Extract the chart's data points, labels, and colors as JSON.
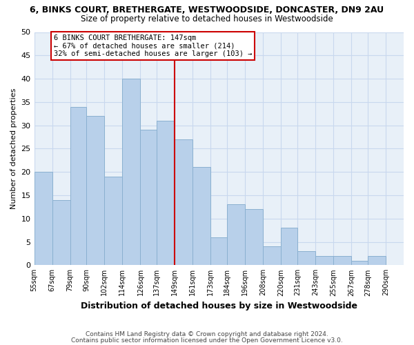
{
  "title": "6, BINKS COURT, BRETHERGATE, WESTWOODSIDE, DONCASTER, DN9 2AU",
  "subtitle": "Size of property relative to detached houses in Westwoodside",
  "xlabel": "Distribution of detached houses by size in Westwoodside",
  "ylabel": "Number of detached properties",
  "footer_lines": [
    "Contains HM Land Registry data © Crown copyright and database right 2024.",
    "Contains public sector information licensed under the Open Government Licence v3.0."
  ],
  "bin_labels": [
    "55sqm",
    "67sqm",
    "79sqm",
    "90sqm",
    "102sqm",
    "114sqm",
    "126sqm",
    "137sqm",
    "149sqm",
    "161sqm",
    "173sqm",
    "184sqm",
    "196sqm",
    "208sqm",
    "220sqm",
    "231sqm",
    "243sqm",
    "255sqm",
    "267sqm",
    "278sqm",
    "290sqm"
  ],
  "bin_edges": [
    55,
    67,
    79,
    90,
    102,
    114,
    126,
    137,
    149,
    161,
    173,
    184,
    196,
    208,
    220,
    231,
    243,
    255,
    267,
    278,
    290
  ],
  "bar_heights": [
    20,
    14,
    34,
    32,
    19,
    40,
    29,
    31,
    27,
    21,
    6,
    13,
    12,
    4,
    8,
    3,
    2,
    2,
    1,
    2
  ],
  "bar_color": "#b8d0ea",
  "bar_edgecolor": "#8ab0d0",
  "reference_line_x": 149,
  "reference_line_color": "#cc0000",
  "annotation_box_text": "6 BINKS COURT BRETHERGATE: 147sqm\n← 67% of detached houses are smaller (214)\n32% of semi-detached houses are larger (103) →",
  "annotation_box_facecolor": "white",
  "annotation_box_edgecolor": "#cc0000",
  "ylim": [
    0,
    50
  ],
  "yticks": [
    0,
    5,
    10,
    15,
    20,
    25,
    30,
    35,
    40,
    45,
    50
  ],
  "grid_color": "#c8d8ee",
  "background_color": "#ffffff",
  "plot_bg_color": "#e8f0f8"
}
